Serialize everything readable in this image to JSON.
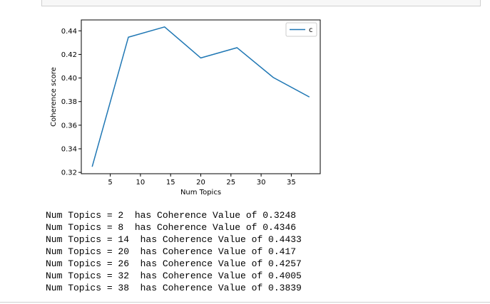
{
  "chart_data": {
    "type": "line",
    "xlabel": "Num Topics",
    "ylabel": "Coherence score",
    "x": [
      2,
      8,
      14,
      20,
      26,
      32,
      38
    ],
    "series": [
      {
        "name": "c",
        "color": "#1f77b4",
        "values": [
          0.3248,
          0.4346,
          0.4433,
          0.417,
          0.4257,
          0.4005,
          0.3839
        ]
      }
    ],
    "xlim": [
      0.2,
      39.8
    ],
    "xticks": [
      5,
      10,
      15,
      20,
      25,
      30,
      35
    ],
    "ylim": [
      0.318875,
      0.449225
    ],
    "yticks": [
      0.32,
      0.34,
      0.36,
      0.38,
      {
        "value": 0.4,
        "label": "0.40"
      },
      0.42,
      0.44
    ],
    "legend": "upper right",
    "grid": false
  },
  "output": {
    "lines": [
      "Num Topics = 2  has Coherence Value of 0.3248",
      "Num Topics = 8  has Coherence Value of 0.4346",
      "Num Topics = 14  has Coherence Value of 0.4433",
      "Num Topics = 20  has Coherence Value of 0.417",
      "Num Topics = 26  has Coherence Value of 0.4257",
      "Num Topics = 32  has Coherence Value of 0.4005",
      "Num Topics = 38  has Coherence Value of 0.3839"
    ]
  }
}
